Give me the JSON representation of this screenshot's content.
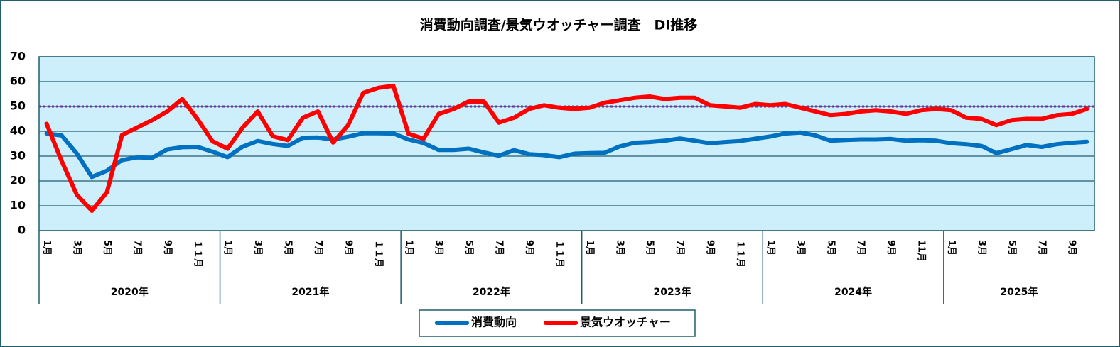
{
  "chart_data": {
    "type": "line",
    "title": "消費動向調査/景気ウオッチャー調査　DI推移",
    "categories": [
      "1月",
      null,
      "3月",
      null,
      "5月",
      null,
      "7月",
      null,
      "9月",
      null,
      "１１月",
      null,
      "1月",
      null,
      "3月",
      null,
      "5月",
      null,
      "7月",
      null,
      "9月",
      null,
      "１１月",
      null,
      "1月",
      null,
      "3月",
      null,
      "5月",
      null,
      "7月",
      null,
      "9月",
      null,
      "１１月",
      null,
      "1月",
      null,
      "3月",
      null,
      "5月",
      null,
      "7月",
      null,
      "9月",
      null,
      "１１月",
      null,
      "1月",
      null,
      "3月",
      null,
      "5月",
      null,
      "7月",
      null,
      "9月",
      null,
      "11月",
      null,
      "1月",
      null,
      "3月",
      null,
      "5月",
      null,
      "7月",
      null,
      "9月",
      null
    ],
    "category_groups": [
      "2020年",
      "2021年",
      "2022年",
      "2023年",
      "2024年",
      "2025年"
    ],
    "series": [
      {
        "name": "消費動向",
        "color": "#0070c0",
        "values": [
          39.1,
          38.3,
          31.1,
          21.6,
          24.1,
          28.4,
          29.5,
          29.3,
          32.7,
          33.6,
          33.7,
          31.8,
          29.6,
          33.8,
          36.1,
          34.9,
          34.1,
          37.4,
          37.5,
          36.7,
          37.8,
          39.2,
          39.2,
          39.1,
          36.7,
          35.3,
          32.5,
          32.5,
          33.0,
          31.5,
          30.2,
          32.4,
          30.8,
          30.4,
          29.6,
          31.0,
          31.2,
          31.3,
          33.9,
          35.4,
          35.7,
          36.2,
          37.1,
          36.2,
          35.2,
          35.7,
          36.1,
          37.0,
          37.9,
          39.1,
          39.5,
          38.3,
          36.2,
          36.5,
          36.7,
          36.7,
          36.9,
          36.2,
          36.4,
          36.2,
          35.2,
          34.8,
          34.1,
          31.2,
          32.8,
          34.5,
          33.7,
          34.8,
          35.4,
          35.8
        ]
      },
      {
        "name": "景気ウオッチャー",
        "color": "#ff0000",
        "values": [
          43.0,
          28.0,
          14.5,
          8.0,
          15.5,
          38.5,
          41.5,
          44.5,
          48.0,
          53.0,
          45.0,
          36.0,
          33.0,
          41.5,
          48.0,
          38.0,
          36.5,
          45.5,
          48.0,
          35.5,
          42.5,
          55.5,
          57.5,
          58.3,
          39.0,
          37.0,
          47.0,
          49.0,
          52.0,
          52.0,
          43.5,
          45.5,
          49.0,
          50.5,
          49.5,
          49.0,
          49.5,
          51.5,
          52.5,
          53.5,
          54.0,
          53.0,
          53.5,
          53.5,
          50.5,
          50.0,
          49.5,
          51.0,
          50.5,
          51.0,
          49.5,
          48.0,
          46.5,
          47.0,
          48.0,
          48.5,
          48.0,
          47.0,
          48.5,
          49.0,
          48.5,
          45.5,
          45.0,
          42.5,
          44.5,
          45.0,
          45.0,
          46.5,
          47.0,
          49.0
        ]
      }
    ],
    "ylim": [
      0,
      70
    ],
    "yticks": [
      0,
      10,
      20,
      30,
      40,
      50,
      60,
      70
    ],
    "grid": true,
    "hline": 50,
    "hline_color": "#7030a0",
    "legend": "bottom"
  }
}
